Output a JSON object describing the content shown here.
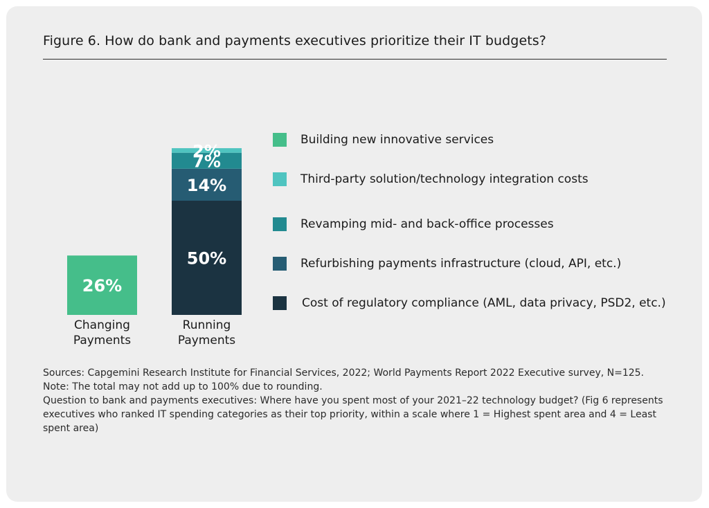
{
  "title": "Figure 6. How do bank and payments executives prioritize their IT budgets?",
  "chart_data": {
    "type": "bar",
    "stacked": true,
    "categories": [
      "Changing Payments",
      "Running Payments"
    ],
    "category_lines": [
      [
        "Changing",
        "Payments"
      ],
      [
        "Running",
        "Payments"
      ]
    ],
    "value_unit": "%",
    "series": [
      {
        "name": "Building new innovative services",
        "color": "#45be8a",
        "values": [
          26,
          null
        ]
      },
      {
        "name": "Third-party solution/technology integration costs",
        "color": "#4fc4c0",
        "values": [
          null,
          2
        ]
      },
      {
        "name": "Revamping mid- and back-office processes",
        "color": "#228a90",
        "values": [
          null,
          7
        ]
      },
      {
        "name": "Refurbishing payments infrastructure (cloud, API, etc.)",
        "color": "#265c73",
        "values": [
          null,
          14
        ]
      },
      {
        "name": "Cost of regulatory compliance (AML, data privacy, PSD2, etc.)",
        "color": "#1b3341",
        "values": [
          null,
          50
        ]
      }
    ],
    "stack_order_bottom_to_top": [
      4,
      3,
      2,
      1,
      0
    ],
    "legend_position": "right",
    "grid": false
  },
  "notes": {
    "line1": "Sources: Capgemini Research Institute for Financial Services, 2022; World Payments Report 2022 Executive survey, N=125.",
    "line2": "Note: The total may not add up to 100% due to rounding.",
    "line3": "Question to bank and payments executives: Where have you spent most of your 2021–22 technology budget? (Fig 6 represents executives who  ranked IT spending categories as their top priority, within a scale where 1 = Highest spent area and 4 = Least spent area)"
  }
}
